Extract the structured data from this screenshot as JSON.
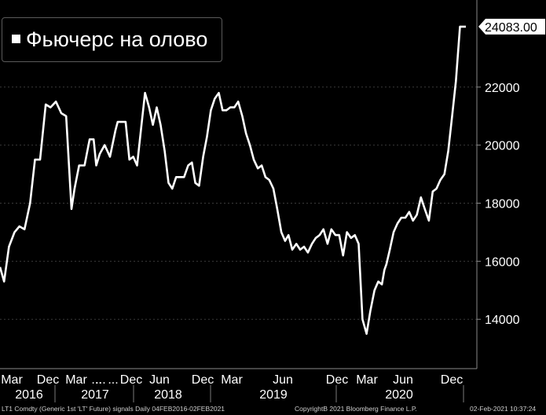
{
  "chart_data": {
    "type": "line",
    "title": "",
    "series": [
      {
        "name": "Фьючерс на олово",
        "color": "#ffffff",
        "last_value_label": "24083.00",
        "last_value": 24083,
        "x": [
          "2016-02-04",
          "2016-02-20",
          "2016-03-10",
          "2016-04-01",
          "2016-04-20",
          "2016-05-10",
          "2016-06-01",
          "2016-06-20",
          "2016-07-10",
          "2016-08-01",
          "2016-08-20",
          "2016-09-10",
          "2016-10-01",
          "2016-10-20",
          "2016-11-10",
          "2016-11-22",
          "2016-12-10",
          "2016-12-31",
          "2017-01-20",
          "2017-02-05",
          "2017-02-15",
          "2017-03-01",
          "2017-03-20",
          "2017-04-10",
          "2017-05-01",
          "2017-05-10",
          "2017-05-25",
          "2017-06-10",
          "2017-06-25",
          "2017-07-10",
          "2017-07-25",
          "2017-08-10",
          "2017-08-25",
          "2017-09-10",
          "2017-09-25",
          "2017-10-10",
          "2017-10-25",
          "2017-11-10",
          "2017-11-25",
          "2017-12-10",
          "2017-12-25",
          "2018-01-10",
          "2018-01-25",
          "2018-02-10",
          "2018-02-25",
          "2018-03-10",
          "2018-03-25",
          "2018-04-10",
          "2018-04-25",
          "2018-05-10",
          "2018-05-25",
          "2018-06-10",
          "2018-06-25",
          "2018-07-10",
          "2018-07-25",
          "2018-08-10",
          "2018-08-25",
          "2018-09-10",
          "2018-09-25",
          "2018-10-10",
          "2018-10-25",
          "2018-11-10",
          "2018-11-25",
          "2018-12-10",
          "2018-12-25",
          "2019-01-10",
          "2019-01-25",
          "2019-02-10",
          "2019-02-25",
          "2019-03-10",
          "2019-03-25",
          "2019-04-10",
          "2019-04-25",
          "2019-05-10",
          "2019-05-25",
          "2019-06-10",
          "2019-06-25",
          "2019-07-10",
          "2019-07-25",
          "2019-08-10",
          "2019-08-25",
          "2019-09-10",
          "2019-09-25",
          "2019-10-10",
          "2019-10-25",
          "2019-11-10",
          "2019-11-25",
          "2019-12-10",
          "2019-12-25",
          "2020-01-10",
          "2020-01-25",
          "2020-02-10",
          "2020-02-25",
          "2020-03-10",
          "2020-03-20",
          "2020-03-28",
          "2020-04-10",
          "2020-04-25",
          "2020-05-10",
          "2020-05-25",
          "2020-06-10",
          "2020-06-25",
          "2020-07-10",
          "2020-07-25",
          "2020-08-10",
          "2020-08-25",
          "2020-09-10",
          "2020-09-25",
          "2020-10-10",
          "2020-10-25",
          "2020-11-10",
          "2020-11-25",
          "2020-12-10",
          "2020-12-25",
          "2021-01-10",
          "2021-01-20",
          "2021-01-28",
          "2021-02-02"
        ],
        "y": [
          15800,
          15300,
          16500,
          17000,
          17200,
          17100,
          18000,
          19500,
          19500,
          21400,
          21300,
          21500,
          21100,
          21000,
          17800,
          18500,
          19300,
          19300,
          20200,
          20200,
          19300,
          19700,
          20000,
          19600,
          20500,
          20800,
          20800,
          20800,
          19500,
          19600,
          19300,
          20600,
          21800,
          21300,
          20700,
          21300,
          20700,
          19800,
          18700,
          18500,
          18900,
          18900,
          18900,
          19300,
          19400,
          18700,
          18600,
          19600,
          20300,
          21200,
          21600,
          21800,
          21200,
          21200,
          21300,
          21300,
          21500,
          21000,
          20400,
          20000,
          19500,
          19200,
          19300,
          18900,
          18800,
          18500,
          17800,
          17000,
          16700,
          16900,
          16400,
          16600,
          16400,
          16500,
          16300,
          16600,
          16800,
          16900,
          17100,
          16600,
          17100,
          16900,
          16900,
          16200,
          17000,
          16800,
          16900,
          16600,
          14000,
          13500,
          14300,
          15000,
          15300,
          15200,
          15700,
          15900,
          16400,
          17000,
          17300,
          17500,
          17500,
          17700,
          17400,
          17600,
          18200,
          17800,
          17400,
          18400,
          18500,
          18800,
          19000,
          19800,
          21000,
          22200,
          24083,
          24083,
          24083,
          24083
        ],
        "y_range": [
          12300,
          25000
        ]
      }
    ],
    "y_ticks": [
      "22000",
      "20000",
      "18000",
      "16000",
      "14000"
    ],
    "month_ticks": [
      "Mar",
      "Dec",
      "Mar",
      "...",
      "Dec",
      "Jun",
      "Dec",
      "Mar",
      "...",
      "Jun",
      "Dec",
      "Mar",
      "Jun",
      "...",
      "Dec"
    ],
    "year_ticks": [
      "2016",
      "2017",
      "2018",
      "2019",
      "2020"
    ],
    "footer": {
      "left": "LT1 Comdty (Generic 1st 'LT' Future) signals  Daily 04FEB2016-02FEB2021",
      "center": "CopyrightB 2021 Bloomberg Finance L.P.",
      "right": "02-Feb-2021 10:37:24"
    }
  }
}
